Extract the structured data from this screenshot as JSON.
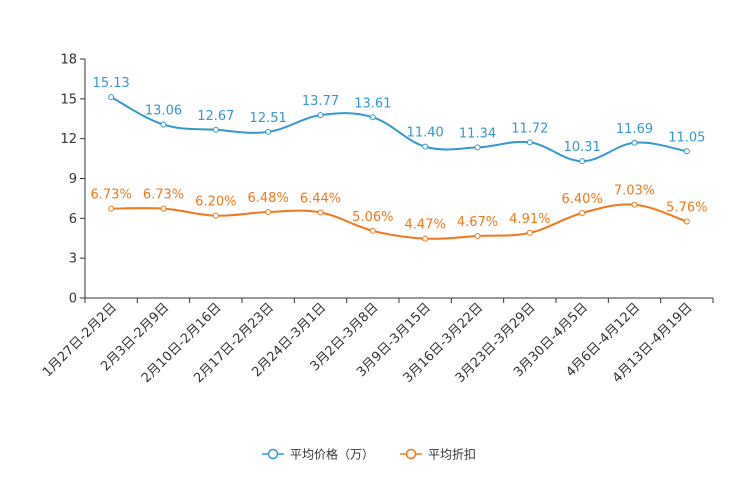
{
  "chart_data": {
    "type": "line",
    "title": "",
    "xlabel": "",
    "ylabel": "",
    "ylim": [
      0,
      18
    ],
    "yticks": [
      0,
      3,
      6,
      9,
      12,
      15,
      18
    ],
    "grid": false,
    "legend_position": "bottom-center",
    "categories": [
      "1月27日-2月2日",
      "2月3日-2月9日",
      "2月10日-2月16日",
      "2月17日-2月23日",
      "2月24日-3月1日",
      "3月2日-3月8日",
      "3月9日-3月15日",
      "3月16日-3月22日",
      "3月23日-3月29日",
      "3月30日-4月5日",
      "4月6日-4月12日",
      "4月13日-4月19日"
    ],
    "series": [
      {
        "name": "平均价格（万）",
        "color": "#3399cc",
        "values": [
          15.13,
          13.06,
          12.67,
          12.51,
          13.77,
          13.61,
          11.4,
          11.34,
          11.72,
          10.31,
          11.69,
          11.05
        ],
        "labels": [
          "15.13",
          "13.06",
          "12.67",
          "12.51",
          "13.77",
          "13.61",
          "11.40",
          "11.34",
          "11.72",
          "10.31",
          "11.69",
          "11.05"
        ]
      },
      {
        "name": "平均折扣",
        "color": "#f07818",
        "values": [
          6.73,
          6.73,
          6.2,
          6.48,
          6.44,
          5.06,
          4.47,
          4.67,
          4.91,
          6.4,
          7.03,
          5.76
        ],
        "labels": [
          "6.73%",
          "6.73%",
          "6.20%",
          "6.48%",
          "6.44%",
          "5.06%",
          "4.47%",
          "4.67%",
          "4.91%",
          "6.40%",
          "7.03%",
          "5.76%"
        ]
      }
    ]
  }
}
